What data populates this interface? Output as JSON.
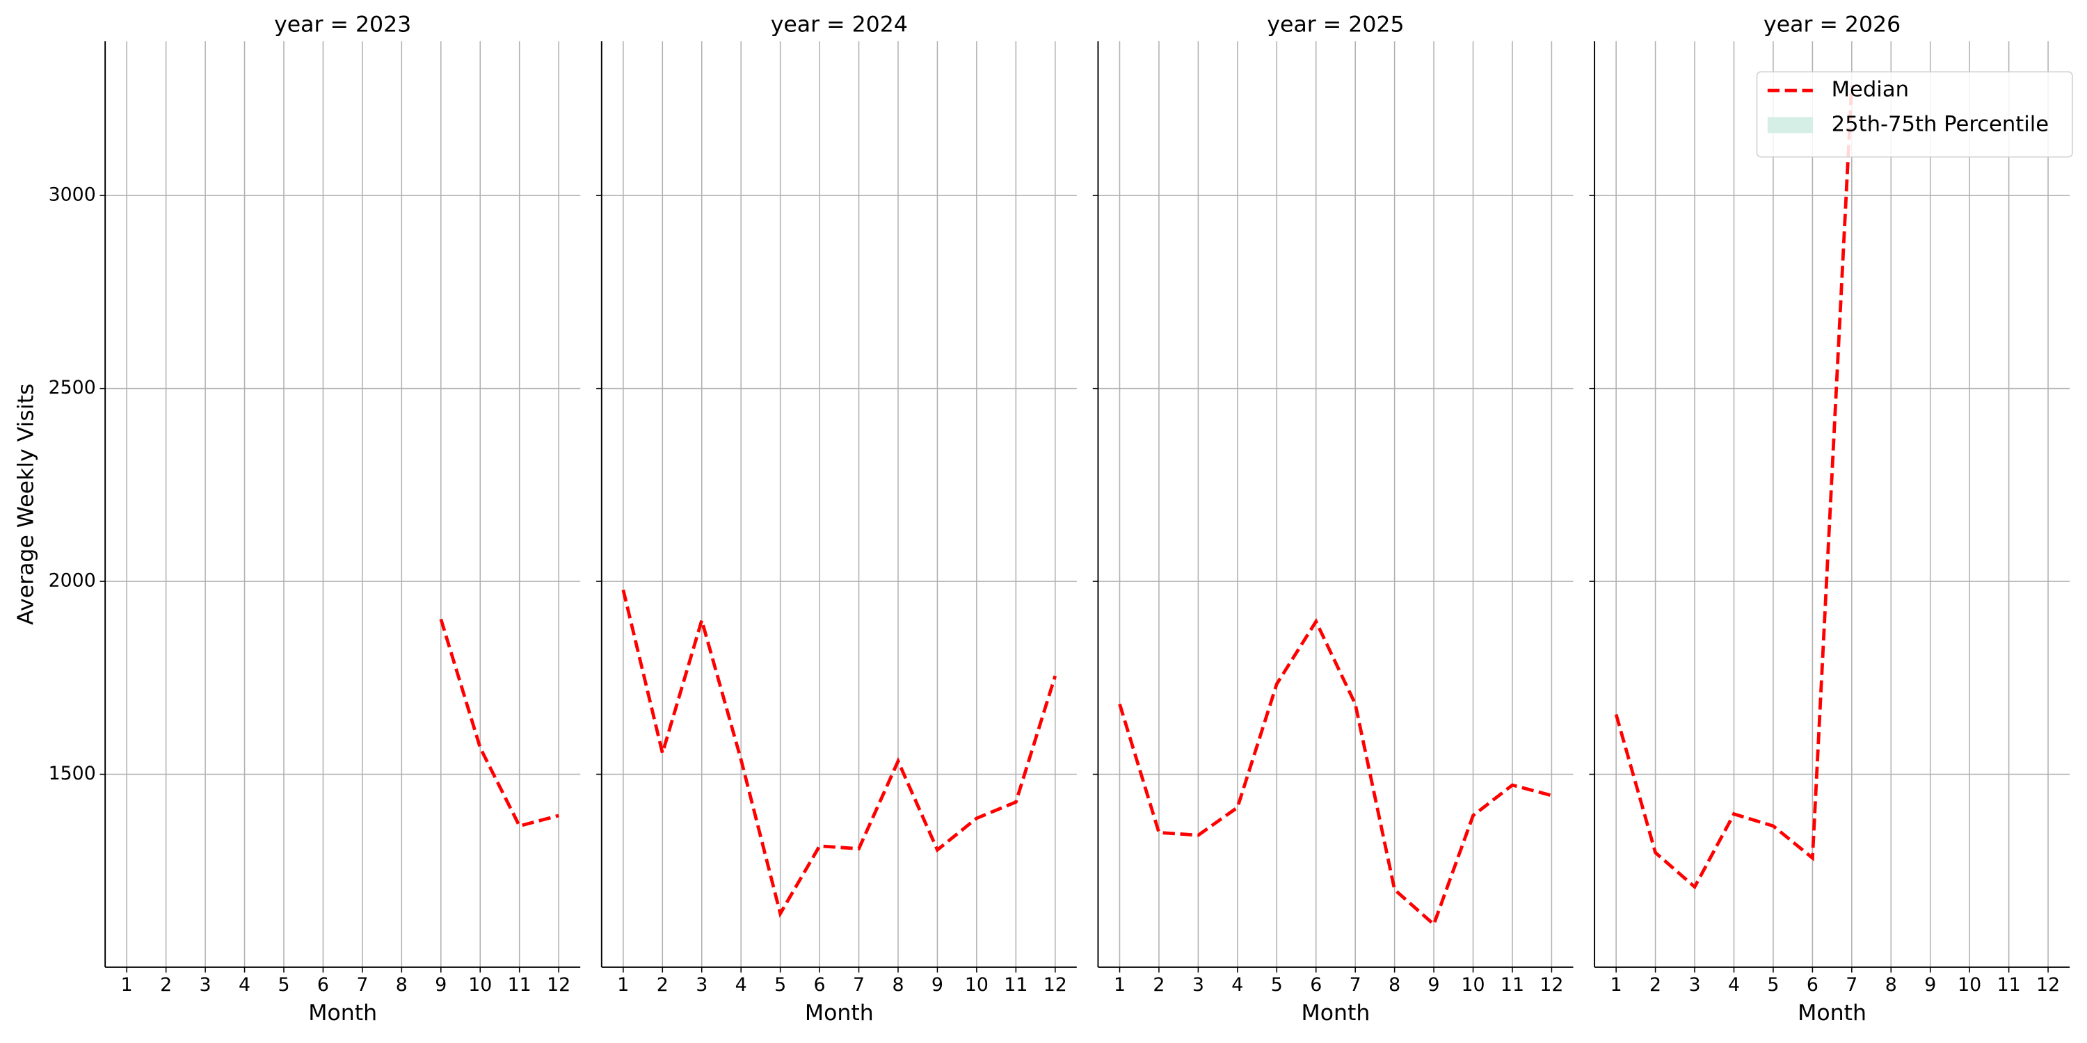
{
  "chart_data": [
    {
      "type": "line",
      "title": "year = 2023",
      "xlabel": "Month",
      "ylabel": "Average Weekly Visits",
      "x": [
        1,
        2,
        3,
        4,
        5,
        6,
        7,
        8,
        9,
        10,
        11,
        12
      ],
      "xlim": [
        0.45,
        12.55
      ],
      "xticks": [
        1,
        2,
        3,
        4,
        5,
        6,
        7,
        8,
        9,
        10,
        11,
        12
      ],
      "ylim": [
        1000,
        3400
      ],
      "yticks": [
        1500,
        2000,
        2500,
        3000
      ],
      "grid": true,
      "series": [
        {
          "name": "Median",
          "color": "#ff0000",
          "values": [
            null,
            null,
            null,
            null,
            null,
            null,
            null,
            null,
            1902,
            1569,
            1366,
            1393
          ]
        }
      ]
    },
    {
      "type": "line",
      "title": "year = 2024",
      "xlabel": "Month",
      "x": [
        1,
        2,
        3,
        4,
        5,
        6,
        7,
        8,
        9,
        10,
        11,
        12
      ],
      "xlim": [
        0.45,
        12.55
      ],
      "xticks": [
        1,
        2,
        3,
        4,
        5,
        6,
        7,
        8,
        9,
        10,
        11,
        12
      ],
      "ylim": [
        1000,
        3400
      ],
      "yticks": [
        1500,
        2000,
        2500,
        3000
      ],
      "grid": true,
      "series": [
        {
          "name": "Median",
          "color": "#ff0000",
          "values": [
            1978,
            1555,
            1899,
            1538,
            1139,
            1314,
            1307,
            1534,
            1304,
            1386,
            1428,
            1755
          ]
        }
      ]
    },
    {
      "type": "line",
      "title": "year = 2025",
      "xlabel": "Month",
      "x": [
        1,
        2,
        3,
        4,
        5,
        6,
        7,
        8,
        9,
        10,
        11,
        12
      ],
      "xlim": [
        0.45,
        12.55
      ],
      "xticks": [
        1,
        2,
        3,
        4,
        5,
        6,
        7,
        8,
        9,
        10,
        11,
        12
      ],
      "ylim": [
        1000,
        3400
      ],
      "yticks": [
        1500,
        2000,
        2500,
        3000
      ],
      "grid": true,
      "series": [
        {
          "name": "Median",
          "color": "#ff0000",
          "values": [
            1682,
            1349,
            1342,
            1414,
            1734,
            1896,
            1682,
            1201,
            1111,
            1393,
            1472,
            1445
          ]
        }
      ]
    },
    {
      "type": "line",
      "title": "year = 2026",
      "xlabel": "Month",
      "x": [
        1,
        2,
        3,
        4,
        5,
        6,
        7,
        8,
        9,
        10,
        11,
        12
      ],
      "xlim": [
        0.45,
        12.55
      ],
      "xticks": [
        1,
        2,
        3,
        4,
        5,
        6,
        7,
        8,
        9,
        10,
        11,
        12
      ],
      "ylim": [
        1000,
        3400
      ],
      "yticks": [
        1500,
        2000,
        2500,
        3000
      ],
      "grid": true,
      "series": [
        {
          "name": "Median",
          "color": "#ff0000",
          "values": [
            1655,
            1297,
            1208,
            1397,
            1366,
            1283,
            3285,
            null,
            null,
            null,
            null,
            null
          ]
        }
      ],
      "legend": {
        "position": "upper right",
        "entries": [
          {
            "label": "Median",
            "color": "#ff0000",
            "style": "dashed"
          },
          {
            "label": "25th-75th Percentile",
            "color": "#d5eee6",
            "style": "fill"
          }
        ]
      }
    }
  ]
}
